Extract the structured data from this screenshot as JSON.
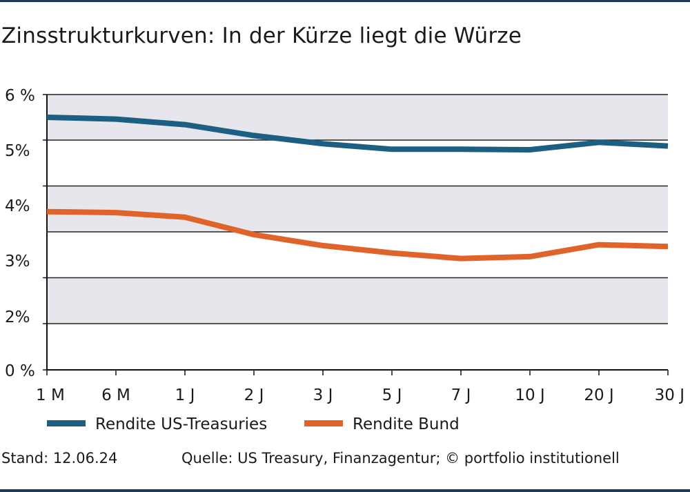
{
  "title": "Zinsstrukturkurven: In der Kürze liegt die Würze",
  "footer": {
    "stand": "Stand: 12.06.24",
    "source": "Quelle: US Treasury, Finanzagentur; © portfolio institutionell"
  },
  "colors": {
    "us": "#1c5f82",
    "bund": "#e0642a",
    "band": "#e6e6ec",
    "gridline": "#222222"
  },
  "chart_data": {
    "type": "line",
    "title": "Zinsstrukturkurven: In der Kürze liegt die Würze",
    "categories": [
      "1 M",
      "6 M",
      "1 J",
      "2 J",
      "3 J",
      "5 J",
      "7 J",
      "10 J",
      "20 J",
      "30 J"
    ],
    "y_ticks": [
      {
        "label": "6 %",
        "value": 6
      },
      {
        "label": "5%",
        "value": 5
      },
      {
        "label": "4%",
        "value": 4
      },
      {
        "label": "3%",
        "value": 3
      },
      {
        "label": "2%",
        "value": 2
      },
      {
        "label": "0 %",
        "value": 0
      }
    ],
    "y_scale": "piecewise: 0 % to 2% spans one band, every other band is 0.5 percentage points",
    "ylim": [
      0,
      6
    ],
    "grid": true,
    "legend_position": "bottom-left",
    "series": [
      {
        "name": "Rendite US-Treasuries",
        "values": [
          5.5,
          5.46,
          5.34,
          5.1,
          4.92,
          4.8,
          4.8,
          4.79,
          4.95,
          4.87
        ]
      },
      {
        "name": "Rendite Bund",
        "values": [
          3.72,
          3.71,
          3.66,
          3.47,
          3.35,
          3.27,
          3.21,
          3.23,
          3.36,
          3.34
        ]
      }
    ]
  }
}
